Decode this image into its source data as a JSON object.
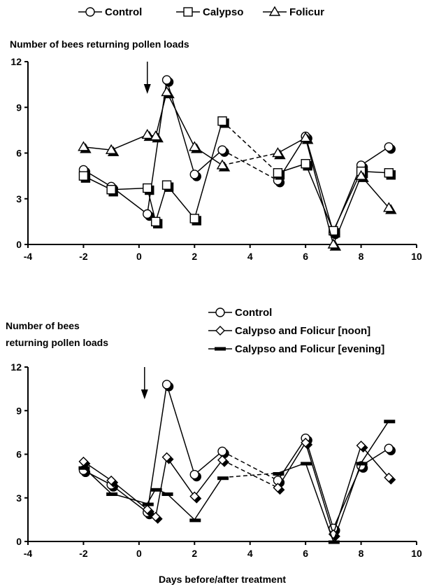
{
  "chart_data": [
    {
      "type": "line",
      "ylabel": "Number of bees returning pollen loads",
      "xlim": [
        -4,
        10
      ],
      "ylim": [
        0,
        12
      ],
      "xticks": [
        -4,
        -2,
        0,
        2,
        4,
        6,
        8,
        10
      ],
      "yticks": [
        0,
        3,
        6,
        9,
        12
      ],
      "treatment_arrow_x": 0.3,
      "legend_position": "top",
      "series": [
        {
          "name": "Control",
          "marker": "circle",
          "x": [
            -2,
            -1,
            0.3,
            1,
            2,
            3,
            5,
            6,
            7,
            8,
            9
          ],
          "y": [
            4.9,
            3.8,
            2.0,
            10.8,
            4.6,
            6.2,
            4.2,
            7.1,
            0.8,
            5.2,
            6.4
          ],
          "dashed_segments": [
            [
              3,
              5
            ]
          ]
        },
        {
          "name": "Calypso",
          "marker": "square",
          "x": [
            -2,
            -1,
            0.3,
            0.6,
            1,
            2,
            3,
            5,
            6,
            7,
            8,
            9
          ],
          "y": [
            4.5,
            3.6,
            3.7,
            1.5,
            3.9,
            1.7,
            8.1,
            4.7,
            5.3,
            0.9,
            4.8,
            4.7
          ],
          "dashed_segments": [
            [
              3,
              5
            ]
          ]
        },
        {
          "name": "Folicur",
          "marker": "triangle",
          "x": [
            -2,
            -1,
            0.3,
            0.6,
            1,
            2,
            3,
            5,
            6,
            7,
            8,
            9
          ],
          "y": [
            6.4,
            6.2,
            7.2,
            7.1,
            10.0,
            6.4,
            5.2,
            6.0,
            7.0,
            0.0,
            4.5,
            2.4
          ],
          "dashed_segments": [
            [
              3,
              5
            ]
          ]
        }
      ]
    },
    {
      "type": "line",
      "ylabel": "Number of bees returning pollen loads",
      "xlabel": "Days before/after treatment",
      "xlim": [
        -4,
        10
      ],
      "ylim": [
        0,
        12
      ],
      "xticks": [
        -4,
        -2,
        0,
        2,
        4,
        6,
        8,
        10
      ],
      "yticks": [
        0,
        3,
        6,
        9,
        12
      ],
      "treatment_arrow_x": 0.2,
      "legend_position": "top-right",
      "series": [
        {
          "name": "Control",
          "marker": "circle",
          "x": [
            -2,
            -1,
            0.3,
            1,
            2,
            3,
            5,
            6,
            7,
            8,
            9
          ],
          "y": [
            4.9,
            3.9,
            2.0,
            10.8,
            4.6,
            6.2,
            4.2,
            7.1,
            0.9,
            5.2,
            6.4
          ],
          "dashed_segments": [
            [
              3,
              5
            ]
          ]
        },
        {
          "name": "Calypso and Folicur [noon]",
          "marker": "diamond",
          "x": [
            -2,
            -1,
            0.3,
            0.6,
            1,
            2,
            3,
            5,
            6,
            7,
            8,
            9
          ],
          "y": [
            5.5,
            4.2,
            2.2,
            1.7,
            5.8,
            3.1,
            5.6,
            3.7,
            6.8,
            0.5,
            6.6,
            4.4
          ],
          "dashed_segments": [
            [
              3,
              5
            ]
          ]
        },
        {
          "name": "Calypso and Folicur [evening]",
          "marker": "dash",
          "x": [
            -2,
            -1,
            0.3,
            0.6,
            1,
            2,
            3,
            5,
            6,
            7,
            8,
            9
          ],
          "y": [
            5.1,
            3.3,
            2.6,
            3.6,
            3.3,
            1.5,
            4.4,
            4.7,
            5.4,
            0.0,
            5.4,
            8.3
          ],
          "dashed_segments": [
            [
              3,
              5
            ]
          ]
        }
      ]
    }
  ],
  "legend_top": {
    "items": [
      {
        "label": "Control",
        "marker": "circle"
      },
      {
        "label": "Calypso",
        "marker": "square"
      },
      {
        "label": "Folicur",
        "marker": "triangle"
      }
    ]
  },
  "panel1": {
    "ylabel": "Number of bees returning pollen loads"
  },
  "panel2": {
    "ylabel_line1": "Number of bees",
    "ylabel_line2": "returning pollen loads",
    "xlabel": "Days before/after treatment",
    "legend": [
      {
        "label": "Control",
        "marker": "circle"
      },
      {
        "label": "Calypso and Folicur [noon]",
        "marker": "diamond"
      },
      {
        "label": "Calypso and Folicur [evening]",
        "marker": "dash"
      }
    ]
  }
}
